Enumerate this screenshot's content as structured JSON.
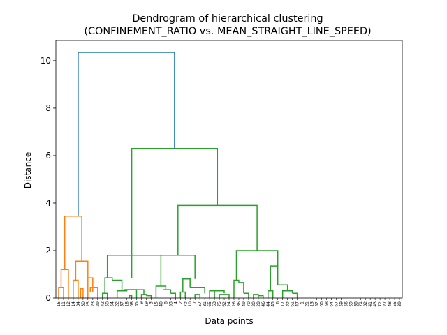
{
  "chart_data": {
    "type": "dendrogram",
    "title_line1": "Dendrogram of hierarchical clustering",
    "title_line2": "(CONFINEMENT_RATIO vs. MEAN_STRAIGHT_LINE_SPEED)",
    "xlabel": "Data points",
    "ylabel": "Distance",
    "ylim": [
      0,
      10.85
    ],
    "yticks": [
      0,
      2,
      4,
      6,
      8,
      10
    ],
    "leaf_labels": [
      "16",
      "11",
      "12",
      "14",
      "34",
      "30",
      "25",
      "23",
      "29",
      "42",
      "50",
      "54",
      "22",
      "37",
      "18",
      "68",
      "35",
      "9",
      "19",
      "3",
      "15",
      "40",
      "8",
      "53",
      "4",
      "2",
      "73",
      "10",
      "7",
      "57",
      "31",
      "65",
      "63",
      "75",
      "62",
      "24",
      "26",
      "36",
      "49",
      "70",
      "20",
      "28",
      "46",
      "44",
      "45",
      "6",
      "17",
      "33",
      "61",
      "47",
      "1",
      "21",
      "13",
      "52",
      "60",
      "58",
      "64",
      "67",
      "59",
      "56",
      "69",
      "38",
      "71",
      "32",
      "41",
      "43",
      "72",
      "27",
      "48",
      "55",
      "39"
    ],
    "colors": {
      "blue": "#1f77b4",
      "orange": "#ff7f0e",
      "green": "#2ca02c"
    },
    "links": [
      {
        "x": [
          1,
          1,
          2,
          2
        ],
        "y": [
          0,
          0.45,
          0.45,
          0
        ],
        "c": "orange"
      },
      {
        "x": [
          1.5,
          1.5,
          3,
          3
        ],
        "y": [
          0.45,
          1.2,
          1.2,
          0
        ],
        "c": "orange"
      },
      {
        "x": [
          4,
          4,
          5,
          5
        ],
        "y": [
          0,
          0.75,
          0.75,
          0
        ],
        "c": "orange"
      },
      {
        "x": [
          5.5,
          5.5,
          6,
          6
        ],
        "y": [
          0,
          0.4,
          0.4,
          0
        ],
        "c": "orange"
      },
      {
        "x": [
          2.25,
          2.25,
          5.75,
          5.75
        ],
        "y": [
          1.2,
          3.45,
          3.45,
          1.55
        ],
        "c": "orange"
      },
      {
        "x": [
          4.5,
          4.5,
          7,
          7
        ],
        "y": [
          0.75,
          1.55,
          1.55,
          0.85
        ],
        "c": "orange"
      },
      {
        "x": [
          7,
          7,
          8,
          8
        ],
        "y": [
          0,
          0.85,
          0.85,
          0.25
        ],
        "c": "orange"
      },
      {
        "x": [
          7.5,
          7.5,
          9,
          9
        ],
        "y": [
          0.25,
          0.45,
          0.45,
          0
        ],
        "c": "orange"
      },
      {
        "x": [
          10,
          10,
          11,
          11
        ],
        "y": [
          0,
          0.2,
          0.2,
          0
        ],
        "c": "green"
      },
      {
        "x": [
          10.5,
          10.5,
          12,
          12
        ],
        "y": [
          0.2,
          0.85,
          0.85,
          0.75
        ],
        "c": "green"
      },
      {
        "x": [
          12,
          12,
          14,
          14
        ],
        "y": [
          0.75,
          0.75,
          0.75,
          0.3
        ],
        "c": "green"
      },
      {
        "x": [
          13,
          13,
          15,
          15
        ],
        "y": [
          0,
          0.3,
          0.3,
          0.35
        ],
        "c": "green"
      },
      {
        "x": [
          14.5,
          14.5,
          17,
          17
        ],
        "y": [
          0.35,
          0.35,
          0.35,
          0
        ],
        "c": "green"
      },
      {
        "x": [
          15.5,
          15.5,
          16,
          16
        ],
        "y": [
          0,
          0.1,
          0.1,
          0
        ],
        "c": "green"
      },
      {
        "x": [
          18,
          18,
          19,
          19
        ],
        "y": [
          0,
          0.15,
          0.15,
          0.1
        ],
        "c": "green"
      },
      {
        "x": [
          19,
          19,
          20,
          20
        ],
        "y": [
          0.1,
          0.1,
          0.1,
          0
        ],
        "c": "green"
      },
      {
        "x": [
          14.5,
          14.5,
          18.5,
          18.5
        ],
        "y": [
          0.35,
          0.35,
          0.35,
          0.15
        ],
        "c": "green"
      },
      {
        "x": [
          11,
          11,
          22,
          22
        ],
        "y": [
          0.85,
          1.8,
          1.8,
          0.5
        ],
        "c": "green"
      },
      {
        "x": [
          21,
          21,
          23,
          23
        ],
        "y": [
          0,
          0.5,
          0.5,
          0.35
        ],
        "c": "green"
      },
      {
        "x": [
          22.5,
          22.5,
          24,
          24
        ],
        "y": [
          0.35,
          0.35,
          0.35,
          0.2
        ],
        "c": "green"
      },
      {
        "x": [
          24,
          24,
          25,
          25
        ],
        "y": [
          0.2,
          0.2,
          0.2,
          0
        ],
        "c": "green"
      },
      {
        "x": [
          26,
          26,
          27,
          27
        ],
        "y": [
          0,
          0.25,
          0.25,
          0
        ],
        "c": "green"
      },
      {
        "x": [
          26.5,
          26.5,
          28,
          28
        ],
        "y": [
          0.25,
          0.8,
          0.8,
          0.45
        ],
        "c": "green"
      },
      {
        "x": [
          28,
          28,
          31,
          31
        ],
        "y": [
          0.45,
          0.45,
          0.45,
          0.2
        ],
        "c": "green"
      },
      {
        "x": [
          29,
          29,
          30,
          30
        ],
        "y": [
          0,
          0.15,
          0.15,
          0
        ],
        "c": "green"
      },
      {
        "x": [
          32,
          32,
          33,
          33
        ],
        "y": [
          0,
          0.3,
          0.3,
          0
        ],
        "c": "green"
      },
      {
        "x": [
          33,
          33,
          35,
          35
        ],
        "y": [
          0.3,
          0.3,
          0.3,
          0.2
        ],
        "c": "green"
      },
      {
        "x": [
          34,
          34,
          36,
          36
        ],
        "y": [
          0,
          0.15,
          0.15,
          0
        ],
        "c": "green"
      },
      {
        "x": [
          22,
          22,
          29,
          29
        ],
        "y": [
          1.8,
          1.8,
          1.8,
          0.8
        ],
        "c": "green"
      },
      {
        "x": [
          37,
          37,
          38,
          38
        ],
        "y": [
          0,
          0.75,
          0.75,
          0.65
        ],
        "c": "green"
      },
      {
        "x": [
          38,
          38,
          39,
          39
        ],
        "y": [
          0.65,
          0.65,
          0.65,
          0.2
        ],
        "c": "green"
      },
      {
        "x": [
          39,
          39,
          40,
          40
        ],
        "y": [
          0.2,
          0.2,
          0.2,
          0
        ],
        "c": "green"
      },
      {
        "x": [
          41,
          41,
          42,
          42
        ],
        "y": [
          0,
          0.15,
          0.15,
          0
        ],
        "c": "green"
      },
      {
        "x": [
          42,
          42,
          43,
          43
        ],
        "y": [
          0,
          0.1,
          0.1,
          0
        ],
        "c": "green"
      },
      {
        "x": [
          44,
          44,
          45,
          45
        ],
        "y": [
          0,
          0.3,
          0.3,
          0
        ],
        "c": "green"
      },
      {
        "x": [
          44.5,
          44.5,
          46,
          46
        ],
        "y": [
          0.3,
          1.35,
          1.35,
          0.55
        ],
        "c": "green"
      },
      {
        "x": [
          46,
          46,
          48,
          48
        ],
        "y": [
          0.55,
          0.55,
          0.55,
          0.3
        ],
        "c": "green"
      },
      {
        "x": [
          47,
          47,
          49,
          49
        ],
        "y": [
          0,
          0.3,
          0.3,
          0.2
        ],
        "c": "green"
      },
      {
        "x": [
          49,
          49,
          50,
          50
        ],
        "y": [
          0.2,
          0.2,
          0.2,
          0
        ],
        "c": "green"
      },
      {
        "x": [
          37.5,
          37.5,
          46,
          46
        ],
        "y": [
          0.75,
          2.0,
          2.0,
          1.35
        ],
        "c": "green"
      },
      {
        "x": [
          25.5,
          25.5,
          41.75,
          41.75
        ],
        "y": [
          1.8,
          3.9,
          3.9,
          2.0
        ],
        "c": "green"
      },
      {
        "x": [
          16,
          16,
          33.6,
          33.6
        ],
        "y": [
          0.85,
          6.3,
          6.3,
          3.9
        ],
        "c": "green"
      },
      {
        "x": [
          5,
          5,
          24.8,
          24.8
        ],
        "y": [
          3.45,
          10.35,
          10.35,
          6.3
        ],
        "c": "blue"
      }
    ]
  }
}
